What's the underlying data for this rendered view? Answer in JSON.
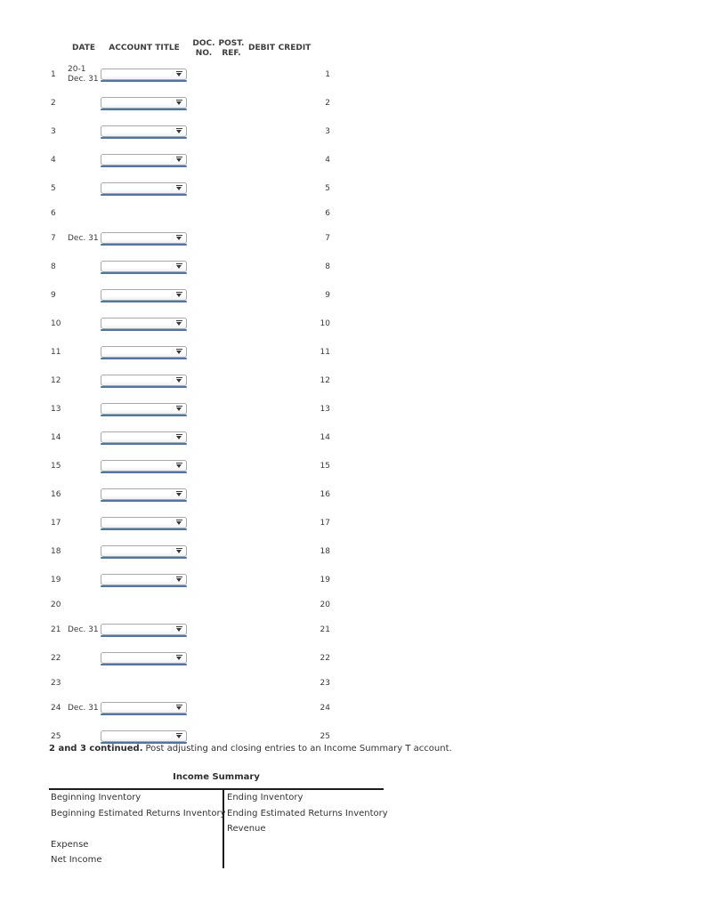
{
  "journal": {
    "headers": {
      "date": "DATE",
      "account_title": "ACCOUNT TITLE",
      "doc_line1": "DOC.",
      "doc_line2": "NO.",
      "post_line1": "POST.",
      "post_line2": "REF.",
      "debit": "DEBIT",
      "credit": "CREDIT"
    },
    "select_value": "",
    "rows": [
      {
        "num": "1",
        "date_line1": "20-1",
        "date_line2": "Dec. 31",
        "has_select": true
      },
      {
        "num": "2",
        "has_select": true
      },
      {
        "num": "3",
        "has_select": true
      },
      {
        "num": "4",
        "has_select": true
      },
      {
        "num": "5",
        "has_select": true
      },
      {
        "num": "6",
        "has_select": false
      },
      {
        "num": "7",
        "date_line2": "Dec. 31",
        "has_select": true
      },
      {
        "num": "8",
        "has_select": true
      },
      {
        "num": "9",
        "has_select": true
      },
      {
        "num": "10",
        "has_select": true
      },
      {
        "num": "11",
        "has_select": true
      },
      {
        "num": "12",
        "has_select": true
      },
      {
        "num": "13",
        "has_select": true
      },
      {
        "num": "14",
        "has_select": true
      },
      {
        "num": "15",
        "has_select": true
      },
      {
        "num": "16",
        "has_select": true
      },
      {
        "num": "17",
        "has_select": true
      },
      {
        "num": "18",
        "has_select": true
      },
      {
        "num": "19",
        "has_select": true
      },
      {
        "num": "20",
        "has_select": false
      },
      {
        "num": "21",
        "date_line2": "Dec. 31",
        "has_select": true
      },
      {
        "num": "22",
        "has_select": true
      },
      {
        "num": "23",
        "has_select": false
      },
      {
        "num": "24",
        "date_line2": "Dec. 31",
        "has_select": true
      },
      {
        "num": "25",
        "has_select": true
      }
    ]
  },
  "instruction": {
    "bold": "2 and 3 continued.",
    "text": "Post adjusting and closing entries to an Income Summary T account."
  },
  "t_account": {
    "title": "Income Summary",
    "left_items": [
      "Beginning Inventory",
      "Beginning Estimated Returns Inventory",
      "",
      "Expense",
      "Net Income"
    ],
    "right_items": [
      "Ending Inventory",
      "Ending Estimated Returns Inventory",
      "Revenue"
    ]
  },
  "colors": {
    "select_underline": "#4a76ad",
    "t_account_line": "#1c1c1c",
    "text": "#3a3a3a"
  }
}
